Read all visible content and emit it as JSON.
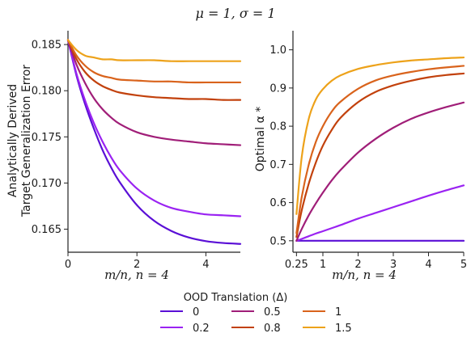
{
  "suptitle": "μ = 1, σ = 1",
  "colors": {
    "0": "#5a0fd6",
    "0.2": "#9a23f2",
    "0.5": "#a01e78",
    "0.8": "#c2410c",
    "1": "#d9631c",
    "1.5": "#eda21a"
  },
  "chart_data": [
    {
      "type": "line",
      "title": "",
      "xlabel": "m/n, n = 4",
      "ylabel": "Analytically Derived\nTarget Generalization Error",
      "xlim": [
        0,
        5
      ],
      "ylim": [
        0.1625,
        0.1865
      ],
      "xticks": [
        0,
        2,
        4
      ],
      "yticks": [
        0.165,
        0.17,
        0.175,
        0.18,
        0.185
      ],
      "ytick_labels": [
        "0.165",
        "0.170",
        "0.175",
        "0.180",
        "0.185"
      ],
      "grid": false,
      "x": [
        0,
        0.25,
        0.5,
        0.75,
        1,
        1.25,
        1.5,
        2,
        2.5,
        3,
        3.5,
        4,
        4.5,
        5
      ],
      "series": [
        {
          "name": "0",
          "values": [
            0.1855,
            0.1816,
            0.1785,
            0.1759,
            0.1736,
            0.1717,
            0.1701,
            0.1676,
            0.1659,
            0.1648,
            0.1641,
            0.1637,
            0.1635,
            0.1634
          ]
        },
        {
          "name": "0.2",
          "values": [
            0.1855,
            0.1818,
            0.1789,
            0.1765,
            0.1745,
            0.1728,
            0.1714,
            0.1694,
            0.1681,
            0.1673,
            0.1669,
            0.1666,
            0.1665,
            0.1664
          ]
        },
        {
          "name": "0.5",
          "values": [
            0.1855,
            0.1828,
            0.1808,
            0.1792,
            0.178,
            0.1771,
            0.1764,
            0.1755,
            0.175,
            0.1747,
            0.1745,
            0.1743,
            0.1742,
            0.1741
          ]
        },
        {
          "name": "0.8",
          "values": [
            0.1855,
            0.1834,
            0.182,
            0.1811,
            0.1805,
            0.1801,
            0.1798,
            0.1795,
            0.1793,
            0.1792,
            0.1791,
            0.1791,
            0.179,
            0.179
          ]
        },
        {
          "name": "1",
          "values": [
            0.1855,
            0.1838,
            0.1827,
            0.182,
            0.1816,
            0.1814,
            0.1812,
            0.1811,
            0.181,
            0.181,
            0.1809,
            0.1809,
            0.1809,
            0.1809
          ]
        },
        {
          "name": "1.5",
          "values": [
            0.1855,
            0.1844,
            0.1838,
            0.1836,
            0.1834,
            0.1834,
            0.1833,
            0.1833,
            0.1833,
            0.1832,
            0.1832,
            0.1832,
            0.1832,
            0.1832
          ]
        }
      ]
    },
    {
      "type": "line",
      "title": "",
      "xlabel": "m/n, n = 4",
      "ylabel": "Optimal α *",
      "xlim": [
        0.15,
        5
      ],
      "ylim": [
        0.47,
        1.05
      ],
      "xticks": [
        0.25,
        1,
        2,
        3,
        4,
        5
      ],
      "xtick_labels": [
        "0.25",
        "1",
        "2",
        "3",
        "4",
        "5"
      ],
      "yticks": [
        0.5,
        0.6,
        0.7,
        0.8,
        0.9,
        1.0
      ],
      "ytick_labels": [
        "0.5",
        "0.6",
        "0.7",
        "0.8",
        "0.9",
        "1.0"
      ],
      "grid": false,
      "x": [
        0.25,
        0.4,
        0.6,
        0.8,
        1,
        1.25,
        1.5,
        2,
        2.5,
        3,
        3.5,
        4,
        4.5,
        5
      ],
      "series": [
        {
          "name": "0",
          "values": [
            0.5,
            0.5,
            0.5,
            0.5,
            0.5,
            0.5,
            0.5,
            0.5,
            0.5,
            0.5,
            0.5,
            0.5,
            0.5,
            0.5
          ]
        },
        {
          "name": "0.2",
          "values": [
            0.5,
            0.505,
            0.512,
            0.519,
            0.525,
            0.533,
            0.541,
            0.558,
            0.573,
            0.588,
            0.603,
            0.618,
            0.632,
            0.645
          ]
        },
        {
          "name": "0.5",
          "values": [
            0.5,
            0.531,
            0.567,
            0.598,
            0.626,
            0.658,
            0.685,
            0.731,
            0.767,
            0.796,
            0.819,
            0.836,
            0.85,
            0.862
          ]
        },
        {
          "name": "0.8",
          "values": [
            0.51,
            0.58,
            0.65,
            0.705,
            0.749,
            0.79,
            0.822,
            0.863,
            0.89,
            0.907,
            0.919,
            0.928,
            0.934,
            0.938
          ]
        },
        {
          "name": "1",
          "values": [
            0.52,
            0.615,
            0.7,
            0.759,
            0.8,
            0.838,
            0.864,
            0.898,
            0.92,
            0.933,
            0.942,
            0.949,
            0.954,
            0.958
          ]
        },
        {
          "name": "1.5",
          "values": [
            0.57,
            0.72,
            0.82,
            0.87,
            0.897,
            0.919,
            0.933,
            0.95,
            0.96,
            0.967,
            0.972,
            0.975,
            0.978,
            0.98
          ]
        }
      ]
    }
  ],
  "legend": {
    "title": "OOD Translation (Δ)",
    "entries": [
      "0",
      "0.5",
      "1",
      "0.2",
      "0.8",
      "1.5"
    ],
    "placement": "bottom-center"
  }
}
